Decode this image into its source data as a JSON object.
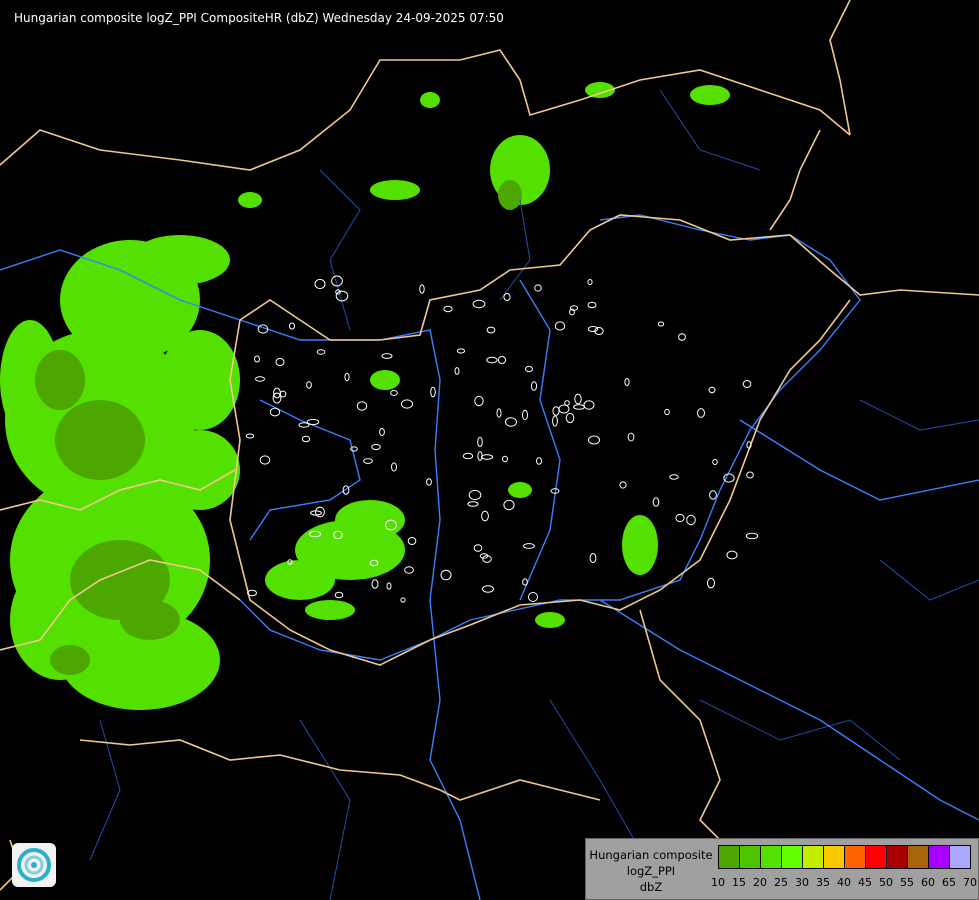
{
  "title": "Hungarian composite logZ_PPI CompositeHR (dbZ) Wednesday 24-09-2025 07:50",
  "legend": {
    "label_lines": [
      "Hungarian composite",
      "logZ_PPI",
      "dbZ"
    ],
    "ticks": [
      "10",
      "15",
      "20",
      "25",
      "30",
      "35",
      "40",
      "45",
      "50",
      "55",
      "60",
      "65",
      "70"
    ],
    "colors": [
      "#4ca800",
      "#4cc400",
      "#54e000",
      "#60ff00",
      "#c4ec00",
      "#f8c800",
      "#ff6400",
      "#ff0000",
      "#a80000",
      "#a86408",
      "#a800ff",
      "#a8a8ff"
    ]
  },
  "map_colors": {
    "country_border": "#f0c890",
    "river": "#3a7fff",
    "region_border": "#1e4fa8",
    "radar_light": "#54e000",
    "radar_dark": "#4ca800"
  },
  "logo": {
    "icon": "met-service-swirl-logo"
  }
}
